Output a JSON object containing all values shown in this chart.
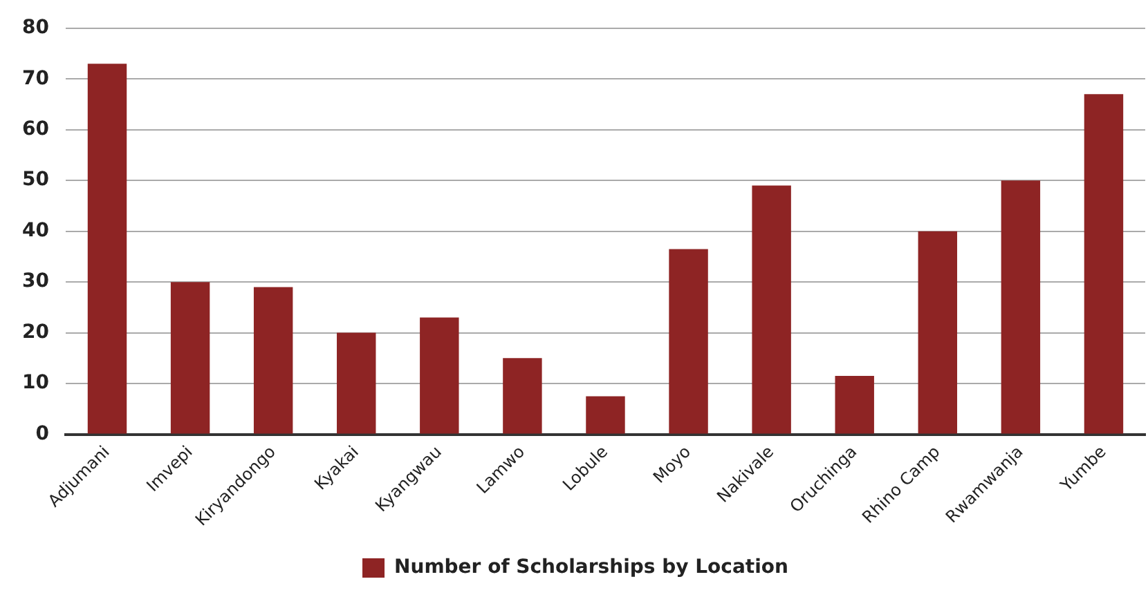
{
  "chart_data": {
    "type": "bar",
    "categories": [
      "Adjumani",
      "Imvepi",
      "Kiryandongo",
      "Kyakai",
      "Kyangwau",
      "Lamwo",
      "Lobule",
      "Moyo",
      "Nakivale",
      "Oruchinga",
      "Rhino Camp",
      "Rwamwanja",
      "Yumbe"
    ],
    "series": [
      {
        "name": "Number of Scholarships by Location",
        "color": "#8e2424",
        "values": [
          73,
          30,
          29,
          20,
          23,
          15,
          7.5,
          36.5,
          49,
          11.5,
          40,
          50,
          67
        ]
      }
    ],
    "ylim": [
      0,
      80
    ],
    "yticks": [
      0,
      10,
      20,
      30,
      40,
      50,
      60,
      70,
      80
    ],
    "grid": "y",
    "legend": "bottom"
  }
}
